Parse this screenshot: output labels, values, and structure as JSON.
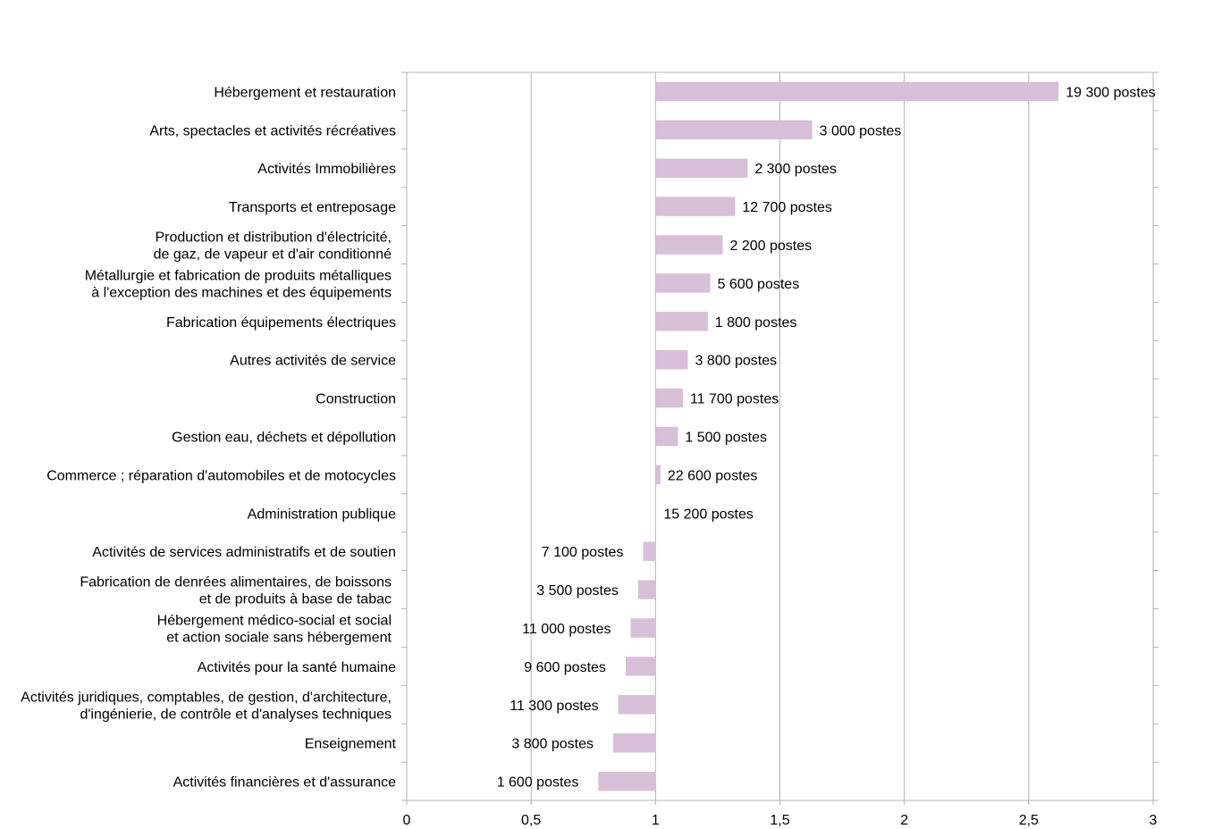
{
  "chart_data": {
    "type": "bar",
    "orientation": "horizontal",
    "baseline": 1,
    "xlim": [
      0,
      3
    ],
    "xticks": [
      0,
      0.5,
      1,
      1.5,
      2,
      2.5,
      3
    ],
    "xtick_labels": [
      "0",
      "0,5",
      "1",
      "1,5",
      "2",
      "2,5",
      "3"
    ],
    "grid": true,
    "legend": "none",
    "bar_color": "#d8bfd8",
    "categories": [
      [
        "Hébergement et restauration"
      ],
      [
        "Arts, spectacles et activités récréatives"
      ],
      [
        "Activités  Immobilières"
      ],
      [
        "Transports et entreposage"
      ],
      [
        "Production et distribution d'électricité,",
        "de gaz, de vapeur et d'air conditionné"
      ],
      [
        "Métallurgie et fabrication de produits métalliques",
        "à l'exception des machines et des équipements"
      ],
      [
        "Fabrication équipements électriques"
      ],
      [
        "Autres activités de service"
      ],
      [
        "Construction"
      ],
      [
        "Gestion eau, déchets et dépollution"
      ],
      [
        "Commerce ; réparation d'automobiles et de motocycles"
      ],
      [
        "Administration publique"
      ],
      [
        "Activités de services administratifs et de soutien"
      ],
      [
        "Fabrication de denrées alimentaires, de boissons",
        "et de produits à base de tabac"
      ],
      [
        "Hébergement médico-social et social",
        "et action sociale sans hébergement"
      ],
      [
        "Activités pour la santé humaine"
      ],
      [
        "Activités juridiques, comptables, de gestion, d'architecture,",
        "d'ingénierie, de contrôle et d'analyses techniques"
      ],
      [
        "Enseignement"
      ],
      [
        "Activités financières et d'assurance"
      ]
    ],
    "values": [
      2.62,
      1.63,
      1.37,
      1.32,
      1.27,
      1.22,
      1.21,
      1.13,
      1.11,
      1.09,
      1.02,
      1.0,
      0.95,
      0.93,
      0.9,
      0.88,
      0.85,
      0.83,
      0.77
    ],
    "data_labels": [
      "19 300 postes",
      "3 000 postes",
      "2 300 postes",
      "12 700 postes",
      "2 200 postes",
      "5 600 postes",
      "1 800 postes",
      "3 800 postes",
      "11 700 postes",
      "1 500 postes",
      "22 600 postes",
      "15 200 postes",
      "7 100 postes",
      "3 500 postes",
      "11 000 postes",
      "9 600 postes",
      "11 300 postes",
      "3 800 postes",
      "1 600 postes"
    ]
  }
}
